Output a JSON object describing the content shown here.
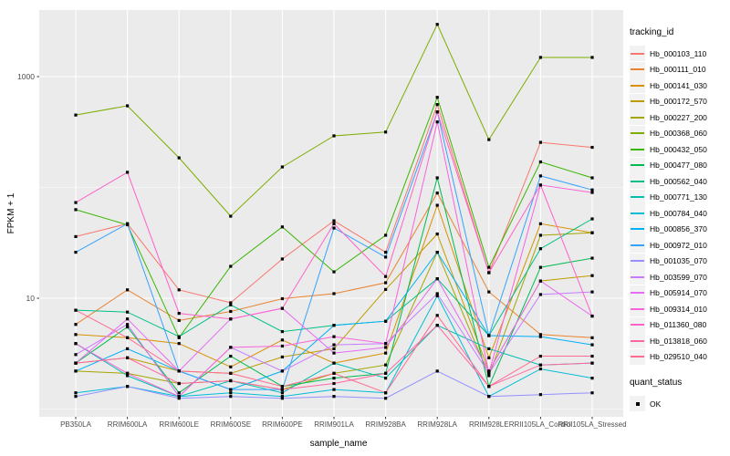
{
  "legend": {
    "tracking_title": "tracking_id",
    "quant_title": "quant_status",
    "quant_items": [
      {
        "label": "OK",
        "marker": "black-square"
      }
    ]
  },
  "colors": {
    "panel_background": "#EBEBEB",
    "gridline": "#FFFFFF",
    "axis_text": "#4D4D4D",
    "axis_title": "#000000",
    "point": "#000000"
  },
  "chart_data": {
    "type": "line",
    "title": "",
    "xlabel": "sample_name",
    "ylabel": "FPKM + 1",
    "y_scale": "log10",
    "y_ticks": [
      10,
      1000
    ],
    "y_minor_ticks": [
      1,
      100
    ],
    "ylim": [
      0.9,
      4200
    ],
    "grid": "on",
    "legend_position": "right",
    "point_marker": "small-black-square",
    "categories": [
      "PB350LA",
      "RRIM600LA",
      "RRIM600LE",
      "RRIM600SE",
      "RRIM600PE",
      "RRIM901LA",
      "RRIM928BA",
      "RRIM928LA",
      "RRIM928LE",
      "RRII105LA_Control",
      "RRII105LA_Stressed"
    ],
    "series": [
      {
        "name": "Hb_000103_110",
        "color": "#F8766D",
        "values": [
          36,
          47,
          11.9,
          9.1,
          22.6,
          50,
          26,
          560,
          17,
          255,
          230
        ]
      },
      {
        "name": "Hb_000111_010",
        "color": "#EA8331",
        "values": [
          5.8,
          11.9,
          6.3,
          7.6,
          9.9,
          11,
          13.8,
          89,
          11.4,
          4.7,
          4.4
        ]
      },
      {
        "name": "Hb_000141_030",
        "color": "#D89000",
        "values": [
          4.7,
          4.4,
          3.9,
          2.4,
          4.2,
          2.6,
          3.2,
          69,
          2.9,
          47,
          39
        ]
      },
      {
        "name": "Hb_000172_570",
        "color": "#C09B00",
        "values": [
          2.6,
          2.9,
          2.2,
          2.1,
          2.95,
          3.5,
          12,
          38,
          2.2,
          14.3,
          16
        ]
      },
      {
        "name": "Hb_000227_200",
        "color": "#A3A500",
        "values": [
          2.2,
          2.1,
          1.7,
          1.8,
          1.5,
          2.1,
          2.5,
          26,
          2.0,
          37,
          39
        ]
      },
      {
        "name": "Hb_000368_060",
        "color": "#7CAE00",
        "values": [
          450,
          545,
          185,
          55,
          153,
          292,
          316,
          2960,
          270,
          1490,
          1490
        ]
      },
      {
        "name": "Hb_000432_050",
        "color": "#39B600",
        "values": [
          63,
          46,
          4.4,
          19.4,
          44,
          17.3,
          37,
          650,
          19,
          170,
          122
        ]
      },
      {
        "name": "Hb_000477_080",
        "color": "#00BB4E",
        "values": [
          2.6,
          5.5,
          1.4,
          3.0,
          1.6,
          1.9,
          2.1,
          122,
          1.6,
          19,
          23
        ]
      },
      {
        "name": "Hb_000562_040",
        "color": "#00C087",
        "values": [
          7.8,
          7.5,
          4.5,
          8.7,
          5.0,
          5.7,
          6.2,
          15,
          4.6,
          28,
          52
        ]
      },
      {
        "name": "Hb_000771_130",
        "color": "#00C0B2",
        "values": [
          3.9,
          2.0,
          1.3,
          1.8,
          1.4,
          2.6,
          1.9,
          5.7,
          3.5,
          2.5,
          2.6
        ]
      },
      {
        "name": "Hb_000784_040",
        "color": "#00BCD8",
        "values": [
          1.4,
          1.6,
          1.3,
          1.4,
          1.3,
          1.5,
          1.4,
          10.5,
          1.3,
          2.3,
          1.9
        ]
      },
      {
        "name": "Hb_000856_370",
        "color": "#00B0F6",
        "values": [
          2.2,
          3.5,
          2.2,
          1.5,
          2.2,
          5.7,
          6.2,
          26,
          4.6,
          4.5,
          3.8
        ]
      },
      {
        "name": "Hb_000972_010",
        "color": "#35A2FF",
        "values": [
          26,
          47,
          2.2,
          1.5,
          1.5,
          43,
          23.5,
          480,
          4.6,
          127,
          95
        ]
      },
      {
        "name": "Hb_001035_070",
        "color": "#9590FF",
        "values": [
          1.3,
          1.6,
          1.25,
          1.3,
          1.25,
          1.3,
          1.25,
          2.2,
          1.3,
          1.35,
          1.4
        ]
      },
      {
        "name": "Hb_003599_070",
        "color": "#C77CFF",
        "values": [
          3.1,
          5.8,
          1.3,
          3.6,
          2.2,
          3.8,
          3.9,
          11,
          2.1,
          10.8,
          11.4
        ]
      },
      {
        "name": "Hb_005914_070",
        "color": "#E76BF3",
        "values": [
          2.6,
          6.5,
          2.2,
          6.5,
          8.1,
          3.2,
          3.6,
          15,
          2.2,
          14.3,
          6.9
        ]
      },
      {
        "name": "Hb_009314_010",
        "color": "#FA62DB",
        "values": [
          3.9,
          2.1,
          1.3,
          3.6,
          3.7,
          4.5,
          3.9,
          390,
          2.1,
          105,
          90
        ]
      },
      {
        "name": "Hb_011360_080",
        "color": "#FF61C9",
        "values": [
          73,
          137,
          7.3,
          6.5,
          8.1,
          47,
          15.7,
          480,
          17,
          105,
          6.9
        ]
      },
      {
        "name": "Hb_013818_060",
        "color": "#FF67A4",
        "values": [
          2.6,
          2.9,
          1.7,
          1.8,
          1.5,
          1.7,
          2.1,
          5.7,
          1.6,
          2.5,
          2.6
        ]
      },
      {
        "name": "Hb_029510_040",
        "color": "#FF6C90",
        "values": [
          7.8,
          4.4,
          2.2,
          2.1,
          1.6,
          2.1,
          1.4,
          7.0,
          1.6,
          3.0,
          3.0
        ]
      }
    ]
  }
}
